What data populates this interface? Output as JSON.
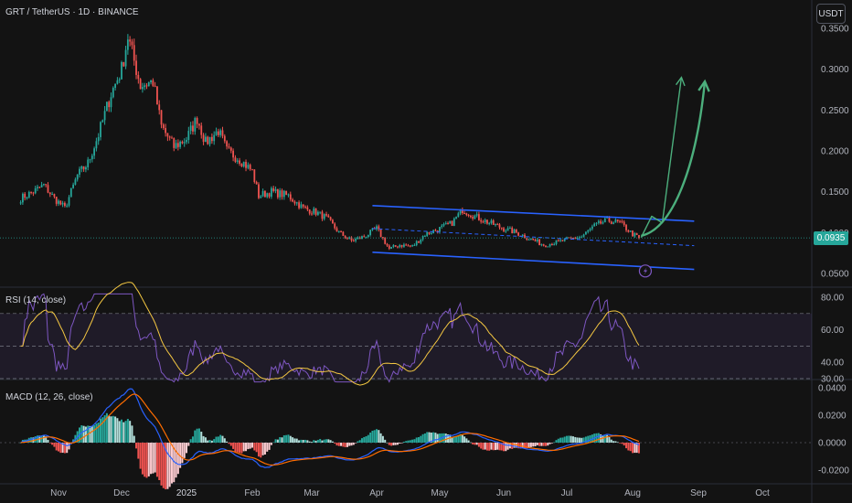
{
  "header": {
    "symbol_title": "GRT / TetherUS · 1D · BINANCE",
    "currency_button": "USDT"
  },
  "last_price": {
    "label": "0.0935",
    "value": 0.0935,
    "color": "#26a69a"
  },
  "colors": {
    "up": "#26a69a",
    "down": "#ef5350",
    "channel": "#2962ff",
    "arrow": "#4caf7d",
    "rsi": "#7e57c2",
    "rsi_ma": "#f5c842",
    "macd": "#2962ff",
    "signal": "#ff6d00",
    "bolt": "#7e57c2"
  },
  "chart_data": [
    {
      "type": "candlestick",
      "title": "GRT / TetherUS · 1D · BINANCE",
      "x_tick_labels": [
        "Nov",
        "Dec",
        "2025",
        "Feb",
        "Mar",
        "Apr",
        "May",
        "Jun",
        "Jul",
        "Aug",
        "Sep",
        "Oct"
      ],
      "y_tick_labels": [
        "0.0500",
        "0.1000",
        "0.1500",
        "0.2000",
        "0.2500",
        "0.3000",
        "0.3500"
      ],
      "ylim": [
        0.03,
        0.36
      ],
      "price_path": [
        [
          "2024-10-14",
          0.142
        ],
        [
          "2024-10-20",
          0.15
        ],
        [
          "2024-10-25",
          0.158
        ],
        [
          "2024-10-30",
          0.142
        ],
        [
          "2024-11-04",
          0.13
        ],
        [
          "2024-11-10",
          0.17
        ],
        [
          "2024-11-15",
          0.185
        ],
        [
          "2024-11-20",
          0.22
        ],
        [
          "2024-11-26",
          0.27
        ],
        [
          "2024-12-01",
          0.3
        ],
        [
          "2024-12-04",
          0.34
        ],
        [
          "2024-12-06",
          0.32
        ],
        [
          "2024-12-10",
          0.28
        ],
        [
          "2024-12-16",
          0.285
        ],
        [
          "2024-12-20",
          0.23
        ],
        [
          "2024-12-26",
          0.205
        ],
        [
          "2025-01-01",
          0.215
        ],
        [
          "2025-01-06",
          0.24
        ],
        [
          "2025-01-10",
          0.21
        ],
        [
          "2025-01-16",
          0.225
        ],
        [
          "2025-01-20",
          0.2
        ],
        [
          "2025-01-26",
          0.19
        ],
        [
          "2025-02-01",
          0.175
        ],
        [
          "2025-02-04",
          0.145
        ],
        [
          "2025-02-10",
          0.15
        ],
        [
          "2025-02-18",
          0.145
        ],
        [
          "2025-02-25",
          0.13
        ],
        [
          "2025-03-03",
          0.125
        ],
        [
          "2025-03-08",
          0.118
        ],
        [
          "2025-03-14",
          0.1
        ],
        [
          "2025-03-20",
          0.09
        ],
        [
          "2025-03-26",
          0.095
        ],
        [
          "2025-04-01",
          0.105
        ],
        [
          "2025-04-07",
          0.08
        ],
        [
          "2025-04-12",
          0.085
        ],
        [
          "2025-04-18",
          0.083
        ],
        [
          "2025-04-24",
          0.098
        ],
        [
          "2025-05-01",
          0.105
        ],
        [
          "2025-05-07",
          0.112
        ],
        [
          "2025-05-12",
          0.128
        ],
        [
          "2025-05-18",
          0.12
        ],
        [
          "2025-05-24",
          0.113
        ],
        [
          "2025-06-01",
          0.105
        ],
        [
          "2025-06-07",
          0.1
        ],
        [
          "2025-06-13",
          0.093
        ],
        [
          "2025-06-20",
          0.085
        ],
        [
          "2025-06-26",
          0.088
        ],
        [
          "2025-07-02",
          0.092
        ],
        [
          "2025-07-08",
          0.095
        ],
        [
          "2025-07-14",
          0.108
        ],
        [
          "2025-07-20",
          0.115
        ],
        [
          "2025-07-26",
          0.112
        ],
        [
          "2025-08-01",
          0.098
        ],
        [
          "2025-08-04",
          0.0935
        ]
      ],
      "channel_lines": [
        {
          "style": "solid",
          "start": [
            "2025-03-30",
            0.133
          ],
          "end": [
            "2025-08-30",
            0.114
          ]
        },
        {
          "style": "dashed",
          "start": [
            "2025-03-30",
            0.105
          ],
          "end": [
            "2025-08-30",
            0.084
          ]
        },
        {
          "style": "solid",
          "start": [
            "2025-03-30",
            0.076
          ],
          "end": [
            "2025-08-30",
            0.055
          ]
        }
      ],
      "projection_arrows": [
        {
          "style": "thin",
          "points": [
            [
              "2025-08-05",
              0.094
            ],
            [
              "2025-08-10",
              0.12
            ],
            [
              "2025-08-15",
              0.112
            ],
            [
              "2025-08-24",
              0.29
            ]
          ]
        },
        {
          "style": "thick",
          "points": [
            [
              "2025-08-05",
              0.096
            ],
            [
              "2025-08-20",
              0.105
            ],
            [
              "2025-08-31",
              0.18
            ],
            [
              "2025-09-04",
              0.285
            ]
          ]
        }
      ]
    },
    {
      "type": "line",
      "title": "RSI (14, close)",
      "y_tick_labels": [
        "30.00",
        "40.00",
        "60.00",
        "80.00"
      ],
      "ylim": [
        28,
        82
      ],
      "band": [
        30,
        70
      ],
      "midline": 50
    },
    {
      "type": "line",
      "title": "MACD (12, 26, close)",
      "y_tick_labels": [
        "-0.0200",
        "0.0000",
        "0.0200",
        "0.0400"
      ],
      "ylim": [
        -0.024,
        0.042
      ]
    }
  ]
}
